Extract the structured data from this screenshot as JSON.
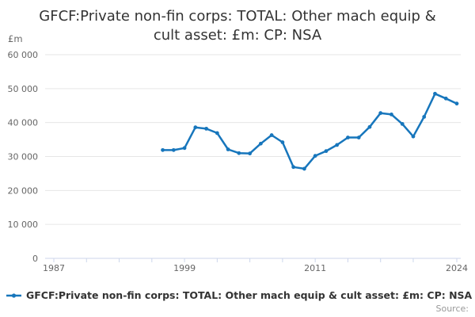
{
  "chart": {
    "title": {
      "lines": [
        "GFCF:Private non-fin corps: TOTAL: Other mach equip &",
        "cult asset: £m: CP: NSA"
      ]
    },
    "y_axis_title": "£m",
    "legend_label": "GFCF:Private non-fin corps: TOTAL: Other mach equip & cult asset: £m: CP: NSA",
    "credits": "Source:",
    "colors": {
      "line": "#1776bc",
      "grid": "#e6e6e6",
      "axis": "#ccd6eb",
      "tick_label": "#666666",
      "title": "#333333",
      "credits": "#999999"
    }
  },
  "chart_data": {
    "type": "line",
    "title": "GFCF:Private non-fin corps: TOTAL: Other mach equip & cult asset: £m: CP: NSA",
    "xlabel": "",
    "ylabel": "£m",
    "xlim": [
      1987,
      2024
    ],
    "ylim": [
      0,
      60000
    ],
    "grid": true,
    "legend_position": "bottom-left",
    "x": [
      1997,
      1998,
      1999,
      2000,
      2001,
      2002,
      2003,
      2004,
      2005,
      2006,
      2007,
      2008,
      2009,
      2010,
      2011,
      2012,
      2013,
      2014,
      2015,
      2016,
      2017,
      2018,
      2019,
      2020,
      2021,
      2022,
      2023,
      2024
    ],
    "series": [
      {
        "name": "GFCF:Private non-fin corps: TOTAL: Other mach equip & cult asset: £m: CP: NSA",
        "values": [
          31900,
          31900,
          32500,
          38600,
          38200,
          36900,
          32100,
          31000,
          30900,
          33800,
          36300,
          34200,
          26900,
          26400,
          30200,
          31600,
          33400,
          35600,
          35600,
          38700,
          42800,
          42400,
          39600,
          35900,
          41700,
          48500,
          47100,
          45600
        ]
      }
    ],
    "y_ticks": [
      {
        "value": 0,
        "label": "0"
      },
      {
        "value": 10000,
        "label": "10 000"
      },
      {
        "value": 20000,
        "label": "20 000"
      },
      {
        "value": 30000,
        "label": "30 000"
      },
      {
        "value": 40000,
        "label": "40 000"
      },
      {
        "value": 50000,
        "label": "50 000"
      },
      {
        "value": 60000,
        "label": "60 000"
      }
    ],
    "x_tick_years": [
      1987,
      1990,
      1993,
      1996,
      1999,
      2002,
      2005,
      2008,
      2011,
      2014,
      2017,
      2020,
      2024
    ],
    "x_tick_labels": [
      {
        "year": 1987,
        "label": "1987"
      },
      {
        "year": 1999,
        "label": "1999"
      },
      {
        "year": 2011,
        "label": "2011"
      },
      {
        "year": 2024,
        "label": "2024"
      }
    ]
  }
}
